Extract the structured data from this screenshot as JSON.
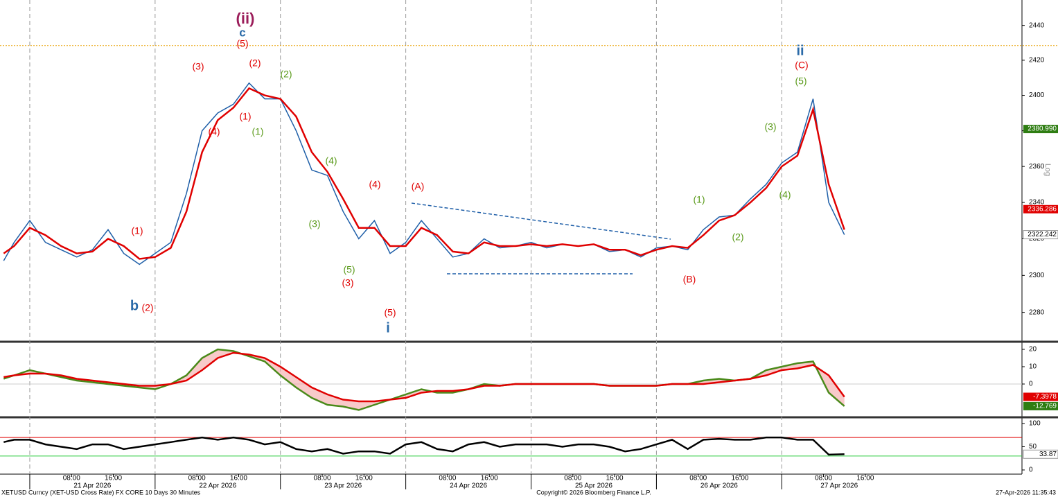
{
  "chart_data": [
    {
      "type": "line",
      "log_scale": true,
      "x": [
        -5,
        -3,
        0,
        3,
        6,
        9,
        12,
        15,
        18,
        21,
        24,
        27,
        30,
        33,
        36,
        39,
        42,
        45,
        48,
        51,
        54,
        57,
        60,
        63,
        66,
        69,
        72,
        75,
        78,
        81,
        84,
        87,
        90,
        93,
        96,
        99,
        102,
        105,
        108,
        111,
        114,
        117,
        120,
        123,
        126,
        129,
        132,
        135,
        138,
        141,
        144,
        147,
        150,
        153,
        156
      ],
      "xlim": [
        -5.7,
        190
      ],
      "ylim": [
        2264.6,
        2454.7
      ],
      "yticks": [
        2280,
        2300,
        2320,
        2340,
        2360,
        2380,
        2400,
        2420,
        2440
      ],
      "day_lines": [
        0,
        24,
        48,
        72,
        96,
        120,
        144
      ],
      "resistance": 2428.4,
      "resistance_color": "#e8a000",
      "series": [
        {
          "name": "XETUSD",
          "color": "#1f5fa8",
          "values": [
            2308,
            2318,
            2330,
            2318,
            2314,
            2310,
            2314,
            2325,
            2312,
            2306,
            2312,
            2318,
            2345,
            2380,
            2390,
            2395,
            2407,
            2398,
            2398,
            2380,
            2358,
            2355,
            2335,
            2320,
            2330,
            2312,
            2318,
            2330,
            2320,
            2310,
            2312,
            2320,
            2315,
            2316,
            2318,
            2315,
            2317,
            2316,
            2317,
            2313,
            2314,
            2310,
            2315,
            2316,
            2314,
            2325,
            2332,
            2333,
            2342,
            2350,
            2362,
            2368,
            2398,
            2340,
            2322.242
          ]
        },
        {
          "name": "MA",
          "color": "#e00000",
          "values": [
            2312,
            2316,
            2326,
            2322,
            2316,
            2312,
            2313,
            2320,
            2316,
            2309,
            2310,
            2315,
            2335,
            2368,
            2386,
            2393,
            2404,
            2400,
            2398,
            2388,
            2368,
            2357,
            2342,
            2326,
            2326,
            2316,
            2316,
            2326,
            2322,
            2313,
            2312,
            2318,
            2316,
            2316,
            2317,
            2316,
            2317,
            2316,
            2317,
            2314,
            2314,
            2311,
            2314,
            2316,
            2315,
            2322,
            2330,
            2333,
            2340,
            2348,
            2360,
            2366,
            2392,
            2350,
            2325
          ]
        }
      ],
      "price_labels": [
        {
          "value": 2380.99,
          "label": "2380.990",
          "color": "#2e7d12"
        },
        {
          "value": 2336.286,
          "label": "2336.286",
          "color": "#e00000"
        },
        {
          "value": 2322.242,
          "label": "2322.242",
          "color": "#ffffff"
        }
      ],
      "annotations": [
        {
          "text": "(ii)",
          "color": "#9b1d5a"
        },
        {
          "text": "c",
          "color": "#2a6aa8"
        },
        {
          "text": "(5)",
          "color": "#e00000"
        },
        {
          "text": "(3)",
          "color": "#e00000"
        },
        {
          "text": "(2)",
          "color": "#e00000"
        },
        {
          "text": "(2)",
          "color": "#5a9a1a"
        },
        {
          "text": "(4)",
          "color": "#e00000"
        },
        {
          "text": "(1)",
          "color": "#e00000"
        },
        {
          "text": "(1)",
          "color": "#5a9a1a"
        },
        {
          "text": "(4)",
          "color": "#5a9a1a"
        },
        {
          "text": "(3)",
          "color": "#5a9a1a"
        },
        {
          "text": "(4)",
          "color": "#e00000"
        },
        {
          "text": "(5)",
          "color": "#5a9a1a"
        },
        {
          "text": "(3)",
          "color": "#e00000"
        },
        {
          "text": "(5)",
          "color": "#e00000"
        },
        {
          "text": "i",
          "color": "#2a6aa8"
        },
        {
          "text": "(A)",
          "color": "#e00000"
        },
        {
          "text": "(1)",
          "color": "#e00000"
        },
        {
          "text": "b",
          "color": "#2a6aa8"
        },
        {
          "text": "(2)",
          "color": "#e00000"
        },
        {
          "text": "(B)",
          "color": "#e00000"
        },
        {
          "text": "(1)",
          "color": "#5a9a1a"
        },
        {
          "text": "(2)",
          "color": "#5a9a1a"
        },
        {
          "text": "(3)",
          "color": "#5a9a1a"
        },
        {
          "text": "(4)",
          "color": "#5a9a1a"
        },
        {
          "text": "(5)",
          "color": "#5a9a1a"
        },
        {
          "text": "(C)",
          "color": "#e00000"
        },
        {
          "text": "ii",
          "color": "#2a6aa8"
        }
      ],
      "scale_label": "Log"
    },
    {
      "type": "line",
      "x": [
        -5,
        -3,
        0,
        3,
        6,
        9,
        12,
        15,
        18,
        21,
        24,
        27,
        30,
        33,
        36,
        39,
        42,
        45,
        48,
        51,
        54,
        57,
        60,
        63,
        66,
        69,
        72,
        75,
        78,
        81,
        84,
        87,
        90,
        93,
        96,
        99,
        102,
        105,
        108,
        111,
        114,
        117,
        120,
        123,
        126,
        129,
        132,
        135,
        138,
        141,
        144,
        147,
        150,
        153,
        156
      ],
      "xlim": [
        -5.7,
        190
      ],
      "ylim": [
        -18.4,
        24
      ],
      "yticks": [
        0,
        10,
        20
      ],
      "zero_line": true,
      "series": [
        {
          "name": "MACD",
          "color": "#4a8a1a",
          "values": [
            3,
            5,
            8,
            6,
            4,
            2,
            1,
            0,
            -1,
            -2,
            -3,
            0,
            5,
            15,
            20,
            19,
            16,
            13,
            5,
            -2,
            -8,
            -12,
            -13,
            -15,
            -12,
            -9,
            -6,
            -3,
            -5,
            -5,
            -3,
            0,
            -1,
            0,
            0,
            0,
            0,
            0,
            0,
            -1,
            -1,
            -1,
            -1,
            0,
            0,
            2,
            3,
            2,
            3,
            8,
            10,
            12,
            13,
            -5,
            -12.769
          ]
        },
        {
          "name": "Signal",
          "color": "#e00000",
          "values": [
            4,
            5,
            6,
            6,
            5,
            3,
            2,
            1,
            0,
            -1,
            -1,
            0,
            2,
            8,
            15,
            18,
            17,
            15,
            10,
            4,
            -2,
            -6,
            -9,
            -10,
            -10,
            -9,
            -8,
            -5,
            -4,
            -4,
            -3,
            -1,
            -1,
            0,
            0,
            0,
            0,
            0,
            0,
            -1,
            -1,
            -1,
            -1,
            0,
            0,
            0,
            1,
            2,
            3,
            5,
            8,
            9,
            11,
            5,
            -7.3978
          ]
        }
      ],
      "value_boxes": [
        {
          "value": -7.3978,
          "color": "#e00000"
        },
        {
          "value": -12.769,
          "color": "#2e7d12"
        }
      ]
    },
    {
      "type": "line",
      "x": [
        -5,
        -3,
        0,
        3,
        6,
        9,
        12,
        15,
        18,
        21,
        24,
        27,
        30,
        33,
        36,
        39,
        42,
        45,
        48,
        51,
        54,
        57,
        60,
        63,
        66,
        69,
        72,
        75,
        78,
        81,
        84,
        87,
        90,
        93,
        96,
        99,
        102,
        105,
        108,
        111,
        114,
        117,
        120,
        123,
        126,
        129,
        132,
        135,
        138,
        141,
        144,
        147,
        150,
        153,
        156
      ],
      "xlim": [
        -5.7,
        190
      ],
      "ylim": [
        -7.5,
        110.4
      ],
      "yticks": [
        0,
        50,
        100
      ],
      "levels": [
        {
          "value": 70,
          "color": "#e00000"
        },
        {
          "value": 30,
          "color": "#2ecc40"
        }
      ],
      "series": [
        {
          "name": "RSI",
          "color": "#000000",
          "values": [
            60,
            65,
            65,
            55,
            50,
            45,
            55,
            55,
            45,
            50,
            55,
            60,
            65,
            70,
            65,
            70,
            65,
            55,
            60,
            45,
            40,
            45,
            35,
            40,
            40,
            35,
            55,
            60,
            45,
            40,
            55,
            60,
            50,
            55,
            55,
            55,
            50,
            55,
            55,
            50,
            40,
            45,
            55,
            65,
            45,
            65,
            67,
            65,
            65,
            70,
            70,
            65,
            65,
            33,
            33.87
          ]
        }
      ],
      "last_value": 33.87,
      "xticks": [
        {
          "value": 8,
          "label": "08:00"
        },
        {
          "value": 16,
          "label": "16:00"
        },
        {
          "value": 32,
          "label": "08:00"
        },
        {
          "value": 40,
          "label": "16:00"
        },
        {
          "value": 56,
          "label": "08:00"
        },
        {
          "value": 64,
          "label": "16:00"
        },
        {
          "value": 80,
          "label": "08:00"
        },
        {
          "value": 88,
          "label": "16:00"
        },
        {
          "value": 104,
          "label": "08:00"
        },
        {
          "value": 112,
          "label": "16:00"
        },
        {
          "value": 128,
          "label": "08:00"
        },
        {
          "value": 136,
          "label": "16:00"
        },
        {
          "value": 152,
          "label": "08:00"
        },
        {
          "value": 160,
          "label": "16:00"
        }
      ],
      "date_ticks": [
        {
          "value": 12,
          "label": "21 Apr 2026"
        },
        {
          "value": 36,
          "label": "22 Apr 2026"
        },
        {
          "value": 60,
          "label": "23 Apr 2026"
        },
        {
          "value": 84,
          "label": "24 Apr 2026"
        },
        {
          "value": 108,
          "label": "25 Apr 2026"
        },
        {
          "value": 132,
          "label": "26 Apr 2026"
        },
        {
          "value": 155,
          "label": "27 Apr 2026"
        }
      ]
    }
  ],
  "footer": {
    "security": "XETUSD Curncy (XET-USD Cross Rate) FX CORE 10 Days 30 Minutes",
    "copyright": "Copyright© 2026 Bloomberg Finance L.P.",
    "timestamp": "27-Apr-2026 11:35:43"
  }
}
